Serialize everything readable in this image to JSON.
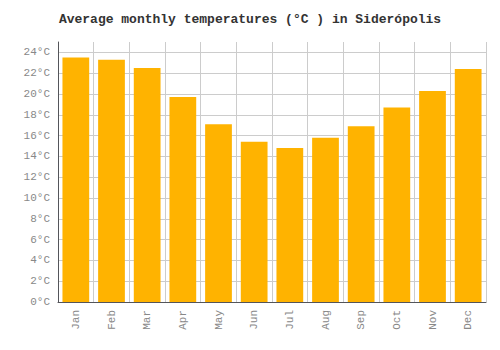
{
  "chart_data": {
    "type": "bar",
    "title": "Average monthly temperatures (°C ) in Siderópolis",
    "categories": [
      "Jan",
      "Feb",
      "Mar",
      "Apr",
      "May",
      "Jun",
      "Jul",
      "Aug",
      "Sep",
      "Oct",
      "Nov",
      "Dec"
    ],
    "values": [
      23.5,
      23.3,
      22.5,
      19.7,
      17.1,
      15.4,
      14.8,
      15.8,
      16.9,
      18.7,
      20.3,
      22.4
    ],
    "color": "#FFB300",
    "ylim": [
      0,
      25
    ],
    "yticks": [
      {
        "value": 0,
        "label": "0°C"
      },
      {
        "value": 2,
        "label": "2°C"
      },
      {
        "value": 4,
        "label": "4°C"
      },
      {
        "value": 6,
        "label": "6°C"
      },
      {
        "value": 8,
        "label": "8°C"
      },
      {
        "value": 10,
        "label": "10°C"
      },
      {
        "value": 12,
        "label": "12°C"
      },
      {
        "value": 14,
        "label": "14°C"
      },
      {
        "value": 16,
        "label": "16°C"
      },
      {
        "value": 18,
        "label": "18°C"
      },
      {
        "value": 20,
        "label": "20°C"
      },
      {
        "value": 22,
        "label": "22°C"
      },
      {
        "value": 24,
        "label": "24°C"
      }
    ],
    "grid": true
  }
}
